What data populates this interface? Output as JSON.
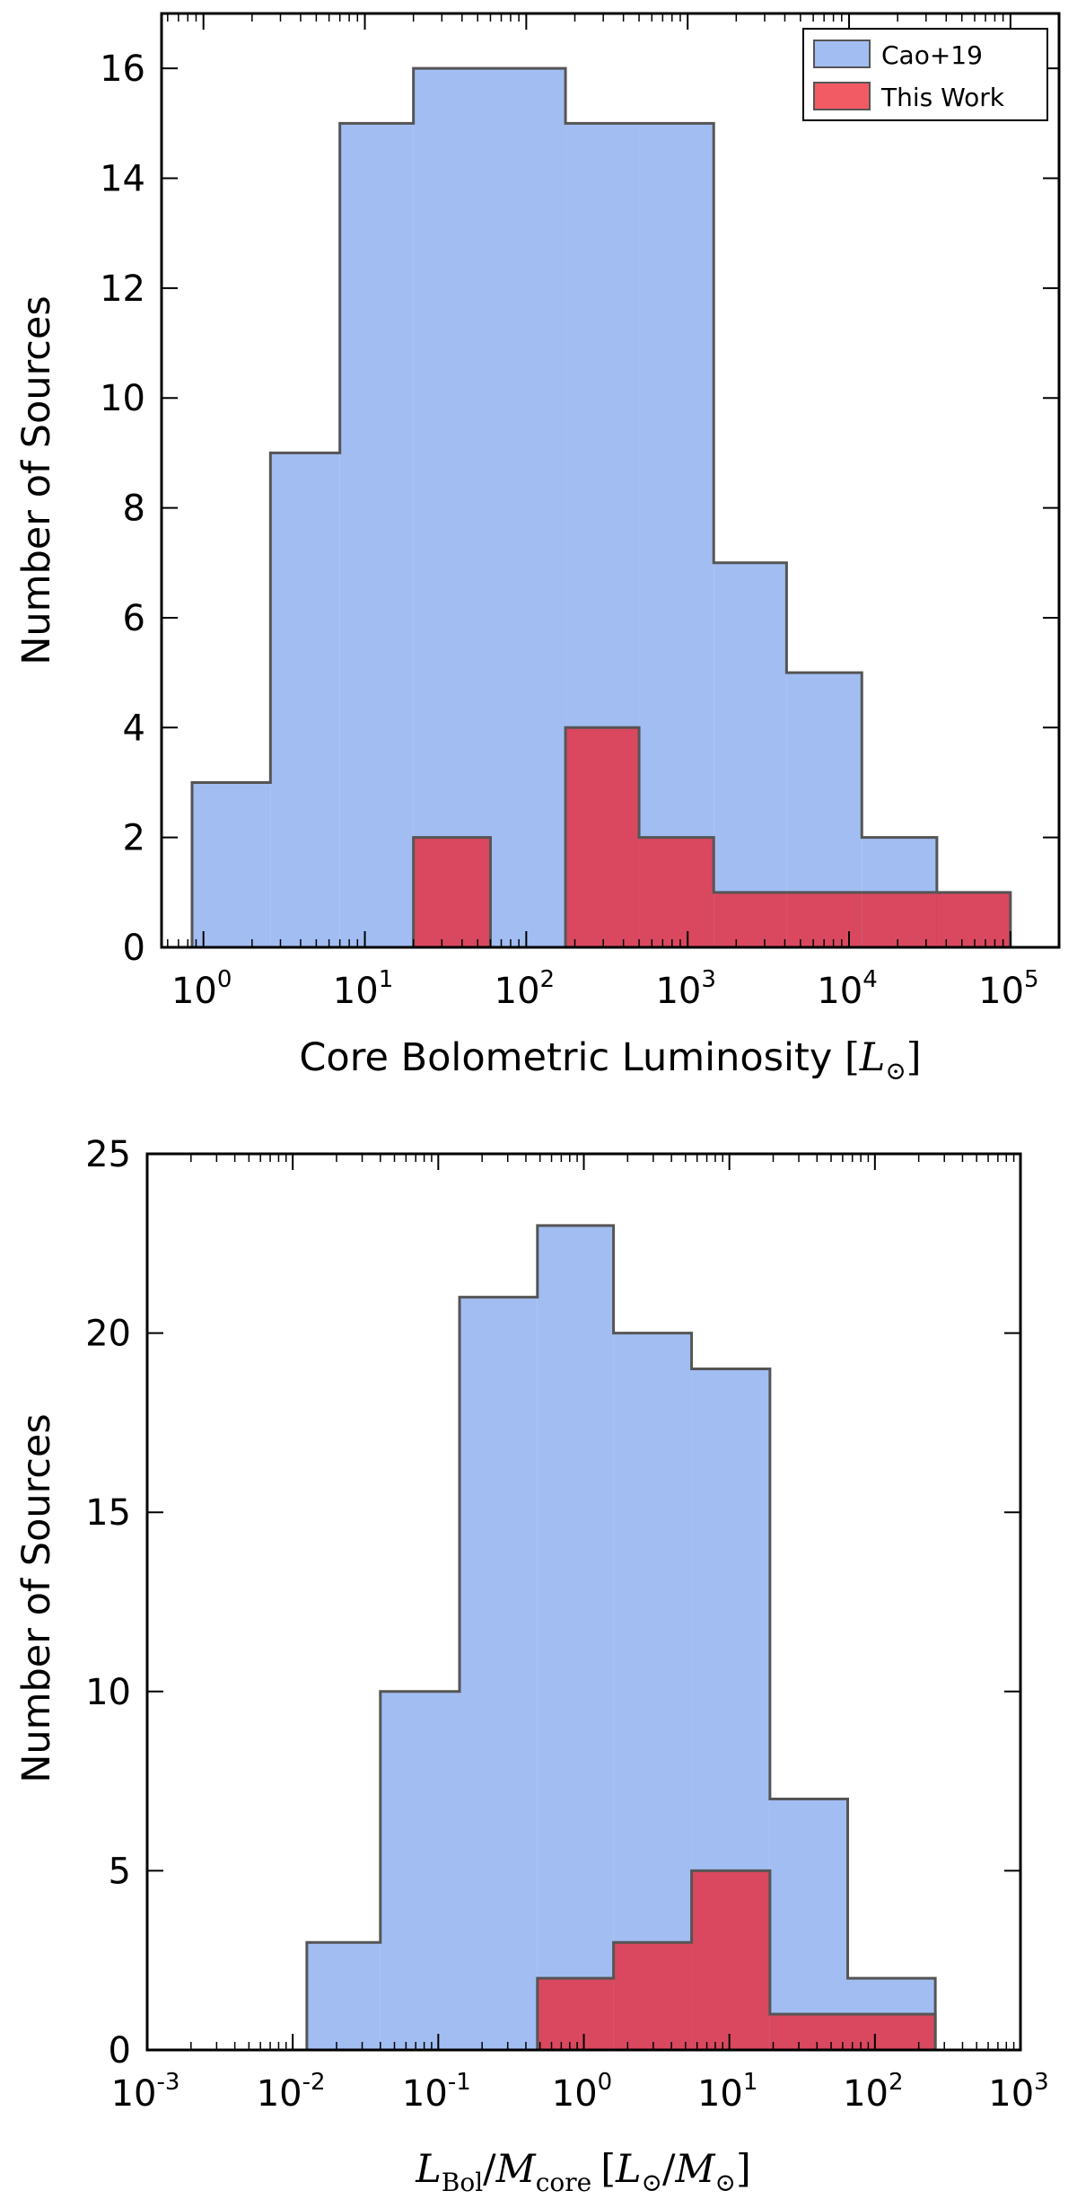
{
  "colors": {
    "cao19_fill": "#a2bdf2",
    "this_work_fill": "#d9485f",
    "this_work_legend": "#f25a64",
    "edge": "#555555",
    "axis": "#000000"
  },
  "chart_data": [
    {
      "type": "histogram",
      "xscale": "log",
      "xlim": [
        0.55,
        200000
      ],
      "ylim": [
        0,
        17
      ],
      "ylabel": "Number of Sources",
      "xlabel_text": "Core Bolometric Luminosity",
      "xlabel_unit_open": "[",
      "xlabel_unit_sym": "L",
      "xlabel_unit_sub": "⊙",
      "xlabel_unit_close": "]",
      "yticks": [
        0,
        2,
        4,
        6,
        8,
        10,
        12,
        14,
        16
      ],
      "ytick_labels": [
        "0",
        "2",
        "4",
        "6",
        "8",
        "10",
        "12",
        "14",
        "16"
      ],
      "xticks": [
        {
          "value": 1,
          "base": "10",
          "exp": "0"
        },
        {
          "value": 10,
          "base": "10",
          "exp": "1"
        },
        {
          "value": 100,
          "base": "10",
          "exp": "2"
        },
        {
          "value": 1000,
          "base": "10",
          "exp": "3"
        },
        {
          "value": 10000,
          "base": "10",
          "exp": "4"
        },
        {
          "value": 100000,
          "base": "10",
          "exp": "5"
        }
      ],
      "legend": {
        "location": "upper right",
        "entries": [
          {
            "label": "Cao+19",
            "series": "cao19"
          },
          {
            "label": "This Work",
            "series": "this_work"
          }
        ]
      },
      "series": [
        {
          "name": "Cao+19",
          "key": "cao19",
          "bin_edges": [
            0.85,
            2.6,
            7.0,
            20.0,
            60.0,
            175.0,
            500.0,
            1450.0,
            4100.0,
            12000.0,
            35000.0,
            100000.0
          ],
          "counts": [
            3,
            9,
            15,
            16,
            16,
            15,
            15,
            7,
            5,
            2,
            0
          ]
        },
        {
          "name": "This Work",
          "key": "this_work",
          "bin_edges": [
            20.0,
            60.0,
            175.0,
            500.0,
            1450.0,
            4100.0,
            12000.0,
            35000.0,
            100000.0
          ],
          "counts": [
            2,
            0,
            4,
            2,
            1,
            1,
            1,
            1
          ]
        }
      ]
    },
    {
      "type": "histogram",
      "xscale": "log",
      "xlim": [
        0.001,
        1000
      ],
      "ylim": [
        0,
        25
      ],
      "ylabel": "Number of Sources",
      "xlabel_num_sym": "L",
      "xlabel_num_sub": "Bol",
      "xlabel_slash": "/",
      "xlabel_den_sym": "M",
      "xlabel_den_sub": "core",
      "xlabel_unit_open": "[",
      "xlabel_unit_l": "L",
      "xlabel_unit_sun": "⊙",
      "xlabel_unit_slash": "/",
      "xlabel_unit_m": "M",
      "xlabel_unit_sun2": "⊙",
      "xlabel_unit_close": "]",
      "yticks": [
        0,
        5,
        10,
        15,
        20,
        25
      ],
      "ytick_labels": [
        "0",
        "5",
        "10",
        "15",
        "20",
        "25"
      ],
      "xticks": [
        {
          "value": 0.001,
          "base": "10",
          "exp": "-3"
        },
        {
          "value": 0.01,
          "base": "10",
          "exp": "-2"
        },
        {
          "value": 0.1,
          "base": "10",
          "exp": "-1"
        },
        {
          "value": 1,
          "base": "10",
          "exp": "0"
        },
        {
          "value": 10,
          "base": "10",
          "exp": "1"
        },
        {
          "value": 100,
          "base": "10",
          "exp": "2"
        },
        {
          "value": 1000,
          "base": "10",
          "exp": "3"
        }
      ],
      "series": [
        {
          "name": "Cao+19",
          "key": "cao19",
          "bin_edges": [
            0.0125,
            0.04,
            0.14,
            0.48,
            1.6,
            5.5,
            19.0,
            65.0,
            260.0
          ],
          "counts": [
            3,
            10,
            21,
            23,
            20,
            19,
            7,
            2
          ]
        },
        {
          "name": "This Work",
          "key": "this_work",
          "bin_edges": [
            0.48,
            1.6,
            5.5,
            19.0,
            65.0,
            260.0
          ],
          "counts": [
            2,
            3,
            5,
            1,
            1
          ]
        }
      ]
    }
  ]
}
